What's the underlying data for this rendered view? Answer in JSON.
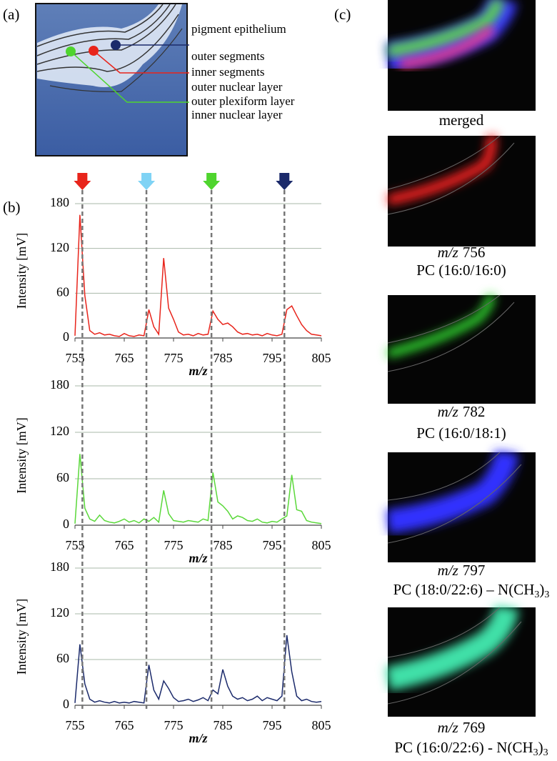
{
  "figure": {
    "panel_labels": [
      "(a)",
      "(b)",
      "(c)"
    ],
    "layers": [
      {
        "text": "pigment epithelium",
        "color": "#1f2f8f"
      },
      {
        "text": "outer segments",
        "color": "#1f2f8f"
      },
      {
        "text": "inner segments",
        "color": "#e02018"
      },
      {
        "text": "outer nuclear layer",
        "color": "#e02018"
      },
      {
        "text": "outer plexiform layer",
        "color": "#4fd52e"
      },
      {
        "text": "inner nuclear layer",
        "color": "#4fd52e"
      }
    ],
    "markers": [
      {
        "x": 756.5,
        "color": "#e8241b"
      },
      {
        "x": 769.5,
        "color": "#7fd3f5"
      },
      {
        "x": 782.7,
        "color": "#4fd52e"
      },
      {
        "x": 797.5,
        "color": "#1b2a6b"
      }
    ],
    "images": [
      {
        "caption": "merged"
      },
      {
        "mz_prefix": "m/z",
        "mz": "756",
        "name": "PC (16:0/16:0)"
      },
      {
        "mz_prefix": "m/z",
        "mz": "782",
        "name": "PC (16:0/18:1)"
      },
      {
        "mz_prefix": "m/z",
        "mz": "797",
        "name": [
          "PC (18:0/22:6) – N(CH",
          "3",
          ")",
          "3"
        ]
      },
      {
        "mz_prefix": "m/z",
        "mz": "769",
        "name": [
          "PC (16:0/22:6) - N(CH",
          "3",
          ")",
          "3"
        ]
      }
    ]
  },
  "chart_data": [
    {
      "type": "line",
      "ylabel": "Intensity [mV]",
      "xlabel": "m/z",
      "color": "#e8241b",
      "grid": true,
      "xlim": [
        755,
        805
      ],
      "xticks": [
        755,
        765,
        775,
        785,
        795,
        805
      ],
      "ylim": [
        0,
        180
      ],
      "yticks": [
        0,
        60,
        120,
        180
      ],
      "x": [
        755,
        756,
        757,
        758,
        759,
        760,
        761,
        762,
        763,
        764,
        765,
        766,
        767,
        768,
        769,
        770,
        771,
        772,
        773,
        774,
        775,
        776,
        777,
        778,
        779,
        780,
        781,
        782,
        783,
        784,
        785,
        786,
        787,
        788,
        789,
        790,
        791,
        792,
        793,
        794,
        795,
        796,
        797,
        798,
        799,
        800,
        801,
        802,
        803,
        804,
        805
      ],
      "values": [
        3,
        165,
        57,
        10,
        5,
        7,
        4,
        5,
        3,
        2,
        6,
        3,
        2,
        4,
        3,
        38,
        15,
        5,
        107,
        40,
        25,
        8,
        4,
        5,
        3,
        6,
        4,
        5,
        36,
        25,
        18,
        20,
        15,
        8,
        5,
        6,
        4,
        5,
        3,
        6,
        4,
        3,
        5,
        38,
        43,
        30,
        18,
        10,
        5,
        4,
        3
      ]
    },
    {
      "type": "line",
      "ylabel": "Intensity [mV]",
      "xlabel": "m/z",
      "color": "#5ad83a",
      "grid": true,
      "xlim": [
        755,
        805
      ],
      "xticks": [
        755,
        765,
        775,
        785,
        795,
        805
      ],
      "ylim": [
        0,
        180
      ],
      "yticks": [
        0,
        60,
        120,
        180
      ],
      "x": [
        755,
        756,
        757,
        758,
        759,
        760,
        761,
        762,
        763,
        764,
        765,
        766,
        767,
        768,
        769,
        770,
        771,
        772,
        773,
        774,
        775,
        776,
        777,
        778,
        779,
        780,
        781,
        782,
        783,
        784,
        785,
        786,
        787,
        788,
        789,
        790,
        791,
        792,
        793,
        794,
        795,
        796,
        797,
        798,
        799,
        800,
        801,
        802,
        803,
        804,
        805
      ],
      "values": [
        2,
        92,
        22,
        8,
        5,
        13,
        6,
        4,
        3,
        5,
        8,
        4,
        6,
        3,
        8,
        5,
        10,
        4,
        45,
        15,
        6,
        5,
        4,
        6,
        5,
        4,
        8,
        6,
        68,
        30,
        25,
        18,
        8,
        12,
        10,
        6,
        5,
        8,
        4,
        3,
        5,
        4,
        8,
        12,
        65,
        20,
        18,
        6,
        4,
        3,
        2
      ]
    },
    {
      "type": "line",
      "ylabel": "Intensity [mV]",
      "xlabel": "m/z",
      "color": "#1b2a6b",
      "grid": true,
      "xlim": [
        755,
        805
      ],
      "xticks": [
        755,
        765,
        775,
        785,
        795,
        805
      ],
      "ylim": [
        0,
        180
      ],
      "yticks": [
        0,
        60,
        120,
        180
      ],
      "x": [
        755,
        756,
        757,
        758,
        759,
        760,
        761,
        762,
        763,
        764,
        765,
        766,
        767,
        768,
        769,
        770,
        771,
        772,
        773,
        774,
        775,
        776,
        777,
        778,
        779,
        780,
        781,
        782,
        783,
        784,
        785,
        786,
        787,
        788,
        789,
        790,
        791,
        792,
        793,
        794,
        795,
        796,
        797,
        798,
        799,
        800,
        801,
        802,
        803,
        804,
        805
      ],
      "values": [
        3,
        80,
        28,
        8,
        4,
        6,
        4,
        3,
        5,
        3,
        4,
        3,
        5,
        4,
        3,
        53,
        20,
        8,
        32,
        22,
        10,
        5,
        6,
        8,
        5,
        7,
        10,
        6,
        20,
        15,
        47,
        25,
        12,
        8,
        10,
        6,
        8,
        12,
        6,
        10,
        8,
        6,
        12,
        92,
        44,
        12,
        6,
        8,
        5,
        4,
        5
      ]
    }
  ]
}
